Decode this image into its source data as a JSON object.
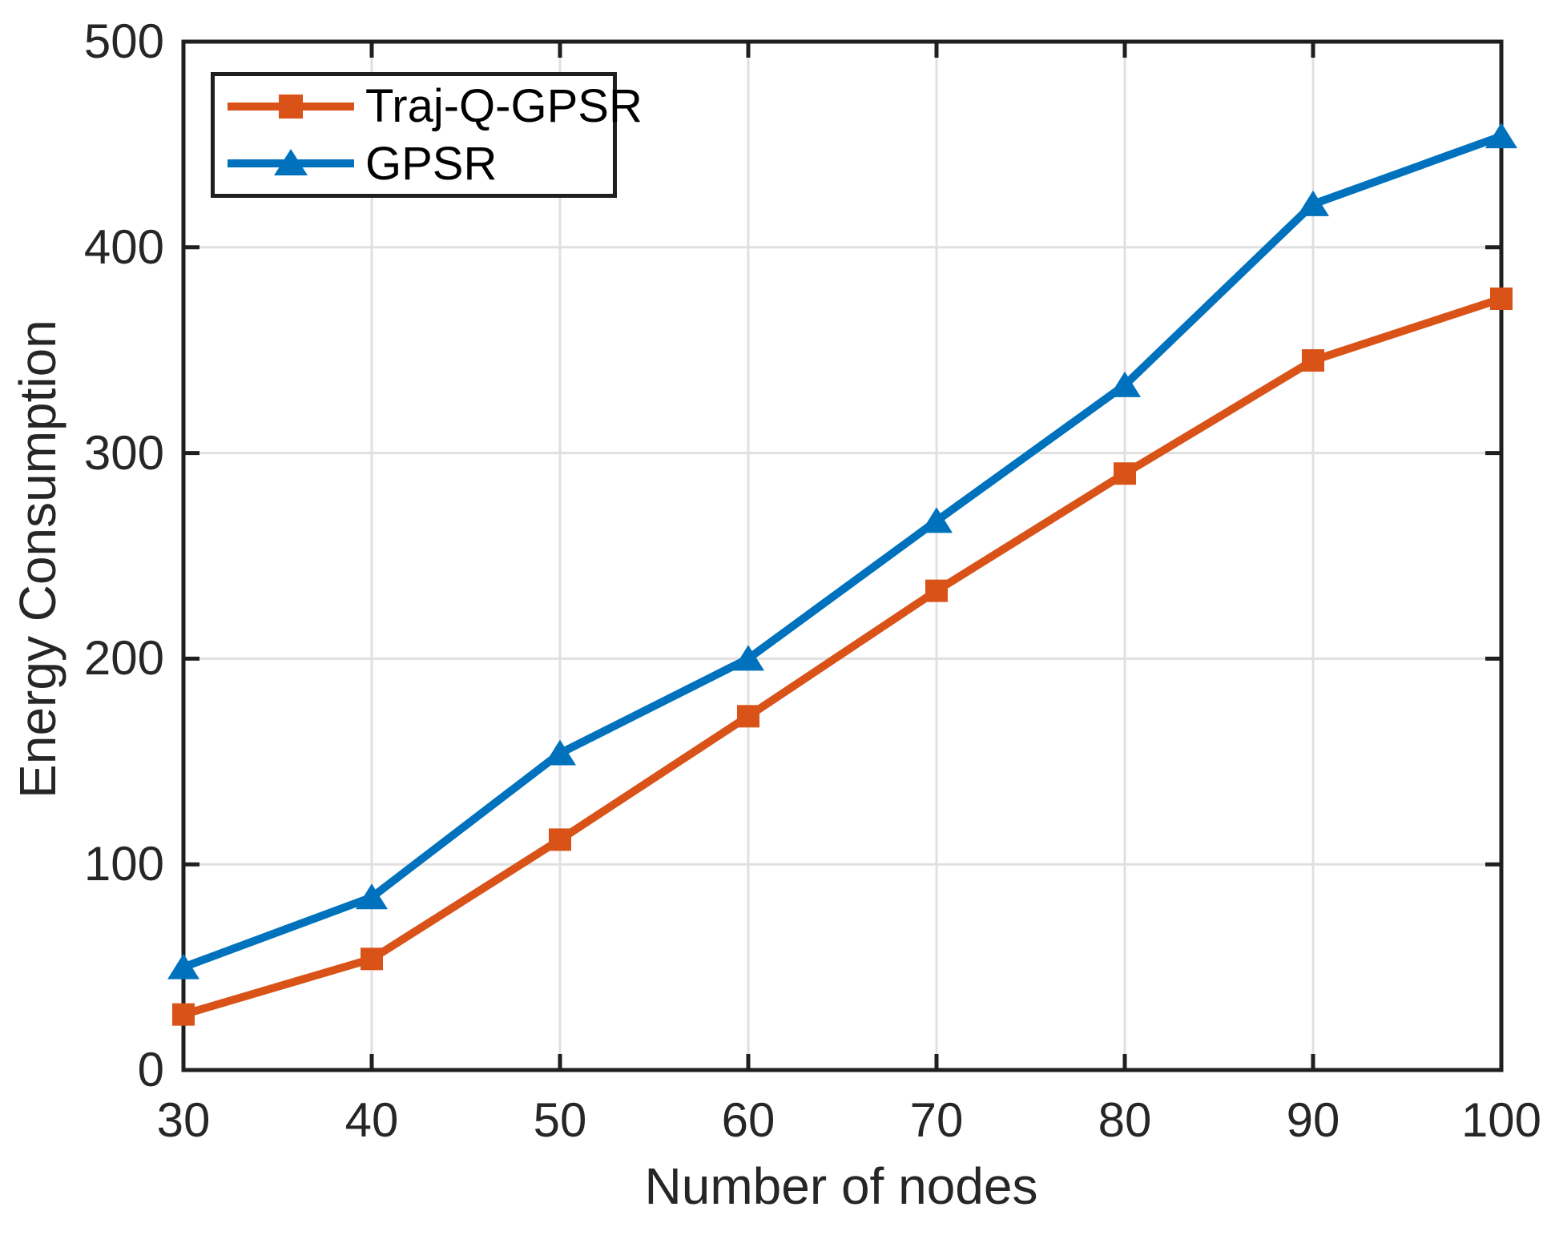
{
  "figure": {
    "background": "#ffffff",
    "axis_color": "#1f1f1f",
    "grid_color": "#e0e0e0",
    "text_color": "#262626"
  },
  "chart_data": {
    "type": "line",
    "title": "",
    "xlabel": "Number of nodes",
    "ylabel": "Energy Consumption",
    "xlim": [
      30,
      100
    ],
    "ylim": [
      0,
      500
    ],
    "xticks": [
      30,
      40,
      50,
      60,
      70,
      80,
      90,
      100
    ],
    "yticks": [
      0,
      100,
      200,
      300,
      400,
      500
    ],
    "grid": true,
    "legend_position": "top-left",
    "x": [
      30,
      40,
      50,
      60,
      70,
      80,
      90,
      100
    ],
    "series": [
      {
        "name": "Traj-Q-GPSR",
        "color": "#D95319",
        "marker": "square",
        "values": [
          27,
          54,
          112,
          172,
          233,
          290,
          345,
          375
        ]
      },
      {
        "name": "GPSR",
        "color": "#0072BD",
        "marker": "triangle",
        "values": [
          50,
          84,
          154,
          200,
          267,
          333,
          421,
          454
        ]
      }
    ]
  }
}
